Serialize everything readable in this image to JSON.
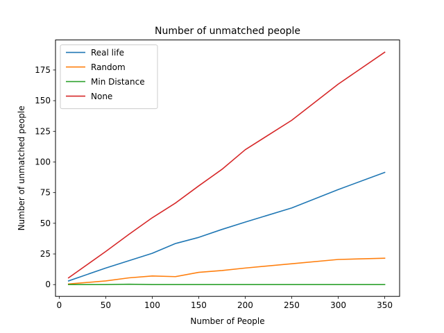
{
  "chart_data": {
    "type": "line",
    "title": "Number of unmatched people",
    "xlabel": "Number of People",
    "ylabel": "Number of unmatched people",
    "xlim": [
      -4,
      366
    ],
    "ylim": [
      -9.6,
      199.5
    ],
    "xticks": [
      0,
      50,
      100,
      150,
      200,
      250,
      300,
      350
    ],
    "yticks": [
      0,
      25,
      50,
      75,
      100,
      125,
      150,
      175
    ],
    "grid": false,
    "legend": "upper-left",
    "series": [
      {
        "name": "Real life",
        "color": "#1f77b4",
        "x": [
          10,
          50,
          75,
          100,
          125,
          150,
          175,
          200,
          250,
          300,
          350
        ],
        "y": [
          3,
          13.5,
          19.5,
          25.5,
          33.5,
          38.5,
          45,
          51,
          62.5,
          77.5,
          91.5
        ]
      },
      {
        "name": "Random",
        "color": "#ff7f0e",
        "x": [
          10,
          50,
          75,
          100,
          125,
          150,
          175,
          200,
          250,
          300,
          350
        ],
        "y": [
          0.5,
          3,
          5.5,
          7,
          6.5,
          10,
          11.5,
          13.5,
          17,
          20.5,
          21.5
        ]
      },
      {
        "name": "Min Distance",
        "color": "#2ca02c",
        "x": [
          10,
          50,
          75,
          100,
          125,
          150,
          175,
          200,
          250,
          300,
          350
        ],
        "y": [
          0,
          0,
          0.3,
          0,
          0,
          0,
          0,
          0,
          0,
          0,
          0
        ]
      },
      {
        "name": "None",
        "color": "#d62728",
        "x": [
          10,
          50,
          75,
          100,
          125,
          150,
          175,
          200,
          250,
          300,
          350
        ],
        "y": [
          5.5,
          27,
          41,
          54.5,
          66.5,
          80.5,
          94,
          110,
          134,
          163.5,
          189.5
        ]
      }
    ]
  }
}
